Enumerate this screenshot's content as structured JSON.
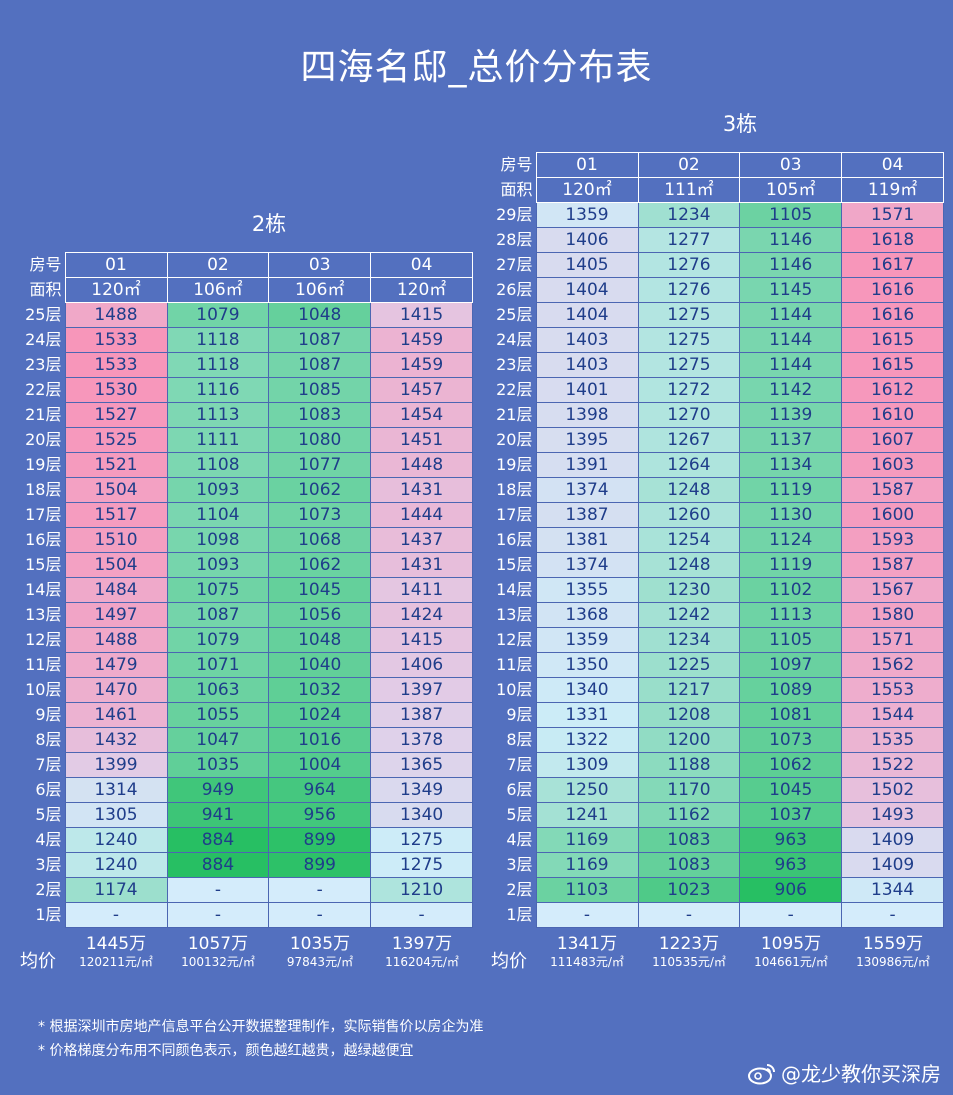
{
  "title": "四海名邸_总价分布表",
  "notes": [
    "* 根据深圳市房地产信息平台公开数据整理制作，实际销售价以房企为准",
    "* 价格梯度分布用不同颜色表示，颜色越红越贵，越绿越便宜"
  ],
  "watermark": {
    "text": "@龙少教你买深房",
    "icon": "weibo-icon"
  },
  "colors": {
    "background": "#5370bf",
    "expensive": "#f49cbf",
    "cheap": "#27bf63"
  },
  "buildings": [
    {
      "name": "2栋",
      "room_label": "房号",
      "area_label": "面积",
      "avg_label": "均价",
      "rooms": [
        "01",
        "02",
        "03",
        "04"
      ],
      "areas": [
        "120㎡",
        "106㎡",
        "106㎡",
        "120㎡"
      ],
      "floors": [
        {
          "label": "25层",
          "prices": [
            "1488",
            "1079",
            "1048",
            "1415"
          ]
        },
        {
          "label": "24层",
          "prices": [
            "1533",
            "1118",
            "1087",
            "1459"
          ]
        },
        {
          "label": "23层",
          "prices": [
            "1533",
            "1118",
            "1087",
            "1459"
          ]
        },
        {
          "label": "22层",
          "prices": [
            "1530",
            "1116",
            "1085",
            "1457"
          ]
        },
        {
          "label": "21层",
          "prices": [
            "1527",
            "1113",
            "1083",
            "1454"
          ]
        },
        {
          "label": "20层",
          "prices": [
            "1525",
            "1111",
            "1080",
            "1451"
          ]
        },
        {
          "label": "19层",
          "prices": [
            "1521",
            "1108",
            "1077",
            "1448"
          ]
        },
        {
          "label": "18层",
          "prices": [
            "1504",
            "1093",
            "1062",
            "1431"
          ]
        },
        {
          "label": "17层",
          "prices": [
            "1517",
            "1104",
            "1073",
            "1444"
          ]
        },
        {
          "label": "16层",
          "prices": [
            "1510",
            "1098",
            "1068",
            "1437"
          ]
        },
        {
          "label": "15层",
          "prices": [
            "1504",
            "1093",
            "1062",
            "1431"
          ]
        },
        {
          "label": "14层",
          "prices": [
            "1484",
            "1075",
            "1045",
            "1411"
          ]
        },
        {
          "label": "13层",
          "prices": [
            "1497",
            "1087",
            "1056",
            "1424"
          ]
        },
        {
          "label": "12层",
          "prices": [
            "1488",
            "1079",
            "1048",
            "1415"
          ]
        },
        {
          "label": "11层",
          "prices": [
            "1479",
            "1071",
            "1040",
            "1406"
          ]
        },
        {
          "label": "10层",
          "prices": [
            "1470",
            "1063",
            "1032",
            "1397"
          ]
        },
        {
          "label": "9层",
          "prices": [
            "1461",
            "1055",
            "1024",
            "1387"
          ]
        },
        {
          "label": "8层",
          "prices": [
            "1432",
            "1047",
            "1016",
            "1378"
          ]
        },
        {
          "label": "7层",
          "prices": [
            "1399",
            "1035",
            "1004",
            "1365"
          ]
        },
        {
          "label": "6层",
          "prices": [
            "1314",
            "949",
            "964",
            "1349"
          ]
        },
        {
          "label": "5层",
          "prices": [
            "1305",
            "941",
            "956",
            "1340"
          ]
        },
        {
          "label": "4层",
          "prices": [
            "1240",
            "884",
            "899",
            "1275"
          ]
        },
        {
          "label": "3层",
          "prices": [
            "1240",
            "884",
            "899",
            "1275"
          ]
        },
        {
          "label": "2层",
          "prices": [
            "1174",
            "-",
            "-",
            "1210"
          ]
        },
        {
          "label": "1层",
          "prices": [
            "-",
            "-",
            "-",
            "-"
          ]
        }
      ],
      "averages": [
        {
          "total": "1445万",
          "unit": "120211元/㎡"
        },
        {
          "total": "1057万",
          "unit": "100132元/㎡"
        },
        {
          "total": "1035万",
          "unit": "97843元/㎡"
        },
        {
          "total": "1397万",
          "unit": "116204元/㎡"
        }
      ]
    },
    {
      "name": "3栋",
      "room_label": "房号",
      "area_label": "面积",
      "avg_label": "均价",
      "rooms": [
        "01",
        "02",
        "03",
        "04"
      ],
      "areas": [
        "120㎡",
        "111㎡",
        "105㎡",
        "119㎡"
      ],
      "floors": [
        {
          "label": "29层",
          "prices": [
            "1359",
            "1234",
            "1105",
            "1571"
          ]
        },
        {
          "label": "28层",
          "prices": [
            "1406",
            "1277",
            "1146",
            "1618"
          ]
        },
        {
          "label": "27层",
          "prices": [
            "1405",
            "1276",
            "1146",
            "1617"
          ]
        },
        {
          "label": "26层",
          "prices": [
            "1404",
            "1276",
            "1145",
            "1616"
          ]
        },
        {
          "label": "25层",
          "prices": [
            "1404",
            "1275",
            "1144",
            "1616"
          ]
        },
        {
          "label": "24层",
          "prices": [
            "1403",
            "1275",
            "1144",
            "1615"
          ]
        },
        {
          "label": "23层",
          "prices": [
            "1403",
            "1275",
            "1144",
            "1615"
          ]
        },
        {
          "label": "22层",
          "prices": [
            "1401",
            "1272",
            "1142",
            "1612"
          ]
        },
        {
          "label": "21层",
          "prices": [
            "1398",
            "1270",
            "1139",
            "1610"
          ]
        },
        {
          "label": "20层",
          "prices": [
            "1395",
            "1267",
            "1137",
            "1607"
          ]
        },
        {
          "label": "19层",
          "prices": [
            "1391",
            "1264",
            "1134",
            "1603"
          ]
        },
        {
          "label": "18层",
          "prices": [
            "1374",
            "1248",
            "1119",
            "1587"
          ]
        },
        {
          "label": "17层",
          "prices": [
            "1387",
            "1260",
            "1130",
            "1600"
          ]
        },
        {
          "label": "16层",
          "prices": [
            "1381",
            "1254",
            "1124",
            "1593"
          ]
        },
        {
          "label": "15层",
          "prices": [
            "1374",
            "1248",
            "1119",
            "1587"
          ]
        },
        {
          "label": "14层",
          "prices": [
            "1355",
            "1230",
            "1102",
            "1567"
          ]
        },
        {
          "label": "13层",
          "prices": [
            "1368",
            "1242",
            "1113",
            "1580"
          ]
        },
        {
          "label": "12层",
          "prices": [
            "1359",
            "1234",
            "1105",
            "1571"
          ]
        },
        {
          "label": "11层",
          "prices": [
            "1350",
            "1225",
            "1097",
            "1562"
          ]
        },
        {
          "label": "10层",
          "prices": [
            "1340",
            "1217",
            "1089",
            "1553"
          ]
        },
        {
          "label": "9层",
          "prices": [
            "1331",
            "1208",
            "1081",
            "1544"
          ]
        },
        {
          "label": "8层",
          "prices": [
            "1322",
            "1200",
            "1073",
            "1535"
          ]
        },
        {
          "label": "7层",
          "prices": [
            "1309",
            "1188",
            "1062",
            "1522"
          ]
        },
        {
          "label": "6层",
          "prices": [
            "1250",
            "1170",
            "1045",
            "1502"
          ]
        },
        {
          "label": "5层",
          "prices": [
            "1241",
            "1162",
            "1037",
            "1493"
          ]
        },
        {
          "label": "4层",
          "prices": [
            "1169",
            "1083",
            "963",
            "1409"
          ]
        },
        {
          "label": "3层",
          "prices": [
            "1169",
            "1083",
            "963",
            "1409"
          ]
        },
        {
          "label": "2层",
          "prices": [
            "1103",
            "1023",
            "906",
            "1344"
          ]
        },
        {
          "label": "1层",
          "prices": [
            "-",
            "-",
            "-",
            "-"
          ]
        }
      ],
      "averages": [
        {
          "total": "1341万",
          "unit": "111483元/㎡"
        },
        {
          "total": "1223万",
          "unit": "110535元/㎡"
        },
        {
          "total": "1095万",
          "unit": "104661元/㎡"
        },
        {
          "total": "1559万",
          "unit": "130986元/㎡"
        }
      ]
    }
  ]
}
